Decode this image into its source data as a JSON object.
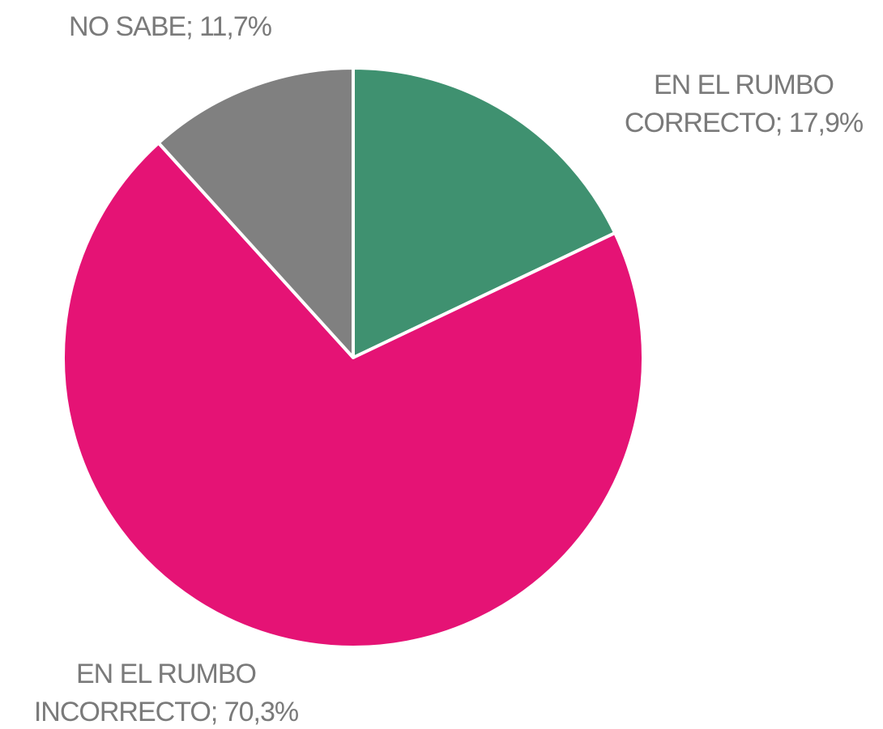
{
  "chart_data": {
    "type": "pie",
    "categories": [
      "EN EL RUMBO CORRECTO",
      "EN EL RUMBO INCORRECTO",
      "NO SABE"
    ],
    "values": [
      17.9,
      70.3,
      11.7
    ],
    "value_labels": [
      "17,9%",
      "70,3%",
      "11,7%"
    ],
    "label_separator": ";",
    "colors": [
      "#3f9170",
      "#e51375",
      "#808080"
    ]
  }
}
